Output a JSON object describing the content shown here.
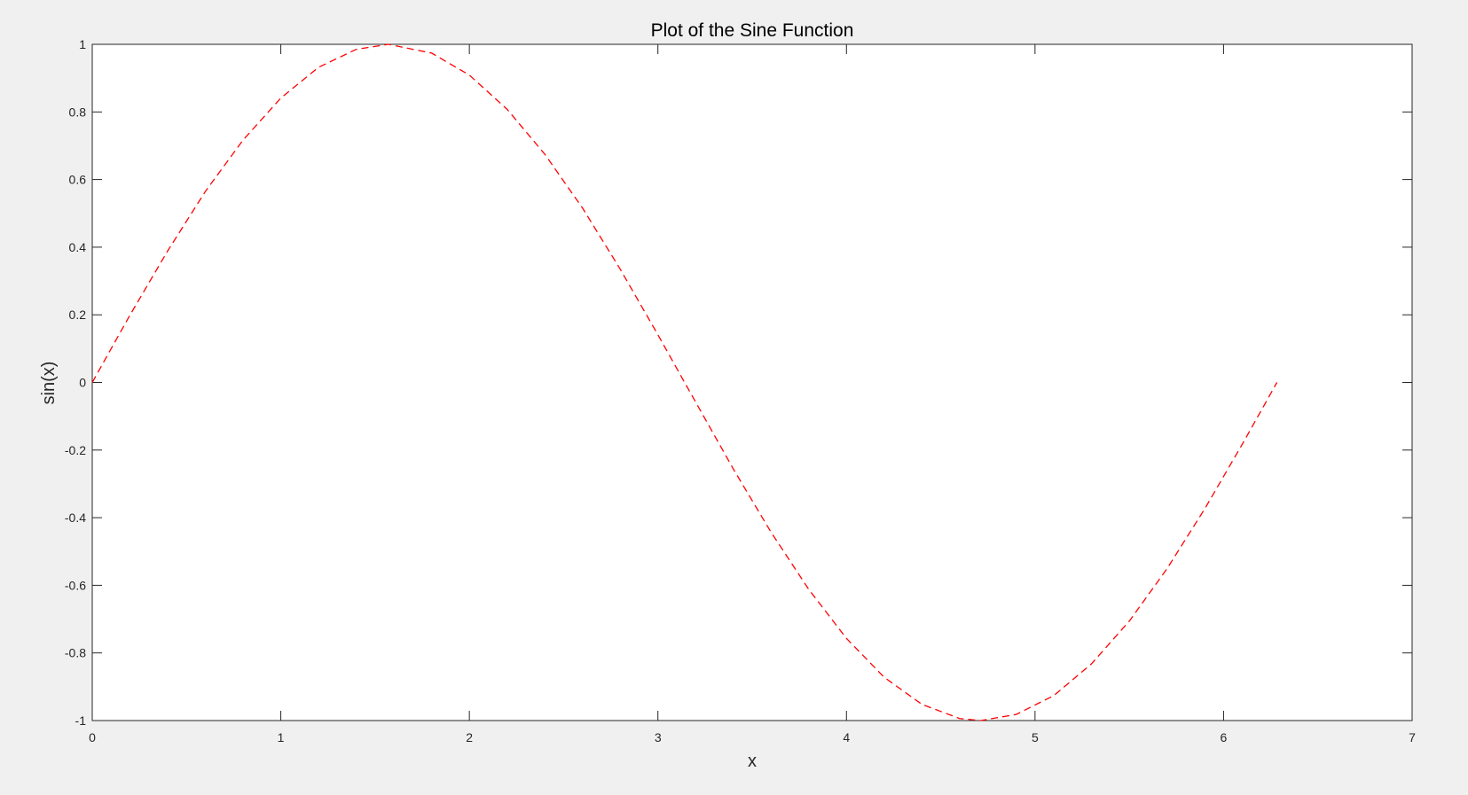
{
  "chart_data": {
    "type": "line",
    "title": "Plot of the Sine Function",
    "xlabel": "x",
    "ylabel": "sin(x)",
    "xlim": [
      0,
      7
    ],
    "ylim": [
      -1,
      1
    ],
    "xticks": [
      0,
      1,
      2,
      3,
      4,
      5,
      6,
      7
    ],
    "xtick_labels": [
      "0",
      "1",
      "2",
      "3",
      "4",
      "5",
      "6",
      "7"
    ],
    "yticks": [
      -1,
      -0.8,
      -0.6,
      -0.4,
      -0.2,
      0,
      0.2,
      0.4,
      0.6,
      0.8,
      1
    ],
    "ytick_labels": [
      "-1",
      "-0.8",
      "-0.6",
      "-0.4",
      "-0.2",
      "0",
      "0.2",
      "0.4",
      "0.6",
      "0.8",
      "1"
    ],
    "grid": false,
    "series": [
      {
        "line_style": "dashed",
        "color": "#ff0000",
        "x": [
          0,
          0.2,
          0.4,
          0.6,
          0.8,
          1.0,
          1.2,
          1.4,
          1.5708,
          1.8,
          2.0,
          2.2,
          2.4,
          2.6,
          2.8,
          3.0,
          3.1416,
          3.4,
          3.6,
          3.8,
          4.0,
          4.2,
          4.4,
          4.6,
          4.7124,
          4.9,
          5.1,
          5.3,
          5.5,
          5.7,
          5.9,
          6.1,
          6.2832
        ],
        "y": [
          0,
          0.199,
          0.389,
          0.565,
          0.717,
          0.841,
          0.932,
          0.985,
          1.0,
          0.974,
          0.909,
          0.808,
          0.675,
          0.516,
          0.335,
          0.141,
          0,
          -0.256,
          -0.443,
          -0.612,
          -0.757,
          -0.872,
          -0.952,
          -0.994,
          -1.0,
          -0.982,
          -0.926,
          -0.832,
          -0.706,
          -0.551,
          -0.374,
          -0.182,
          0
        ]
      }
    ]
  }
}
